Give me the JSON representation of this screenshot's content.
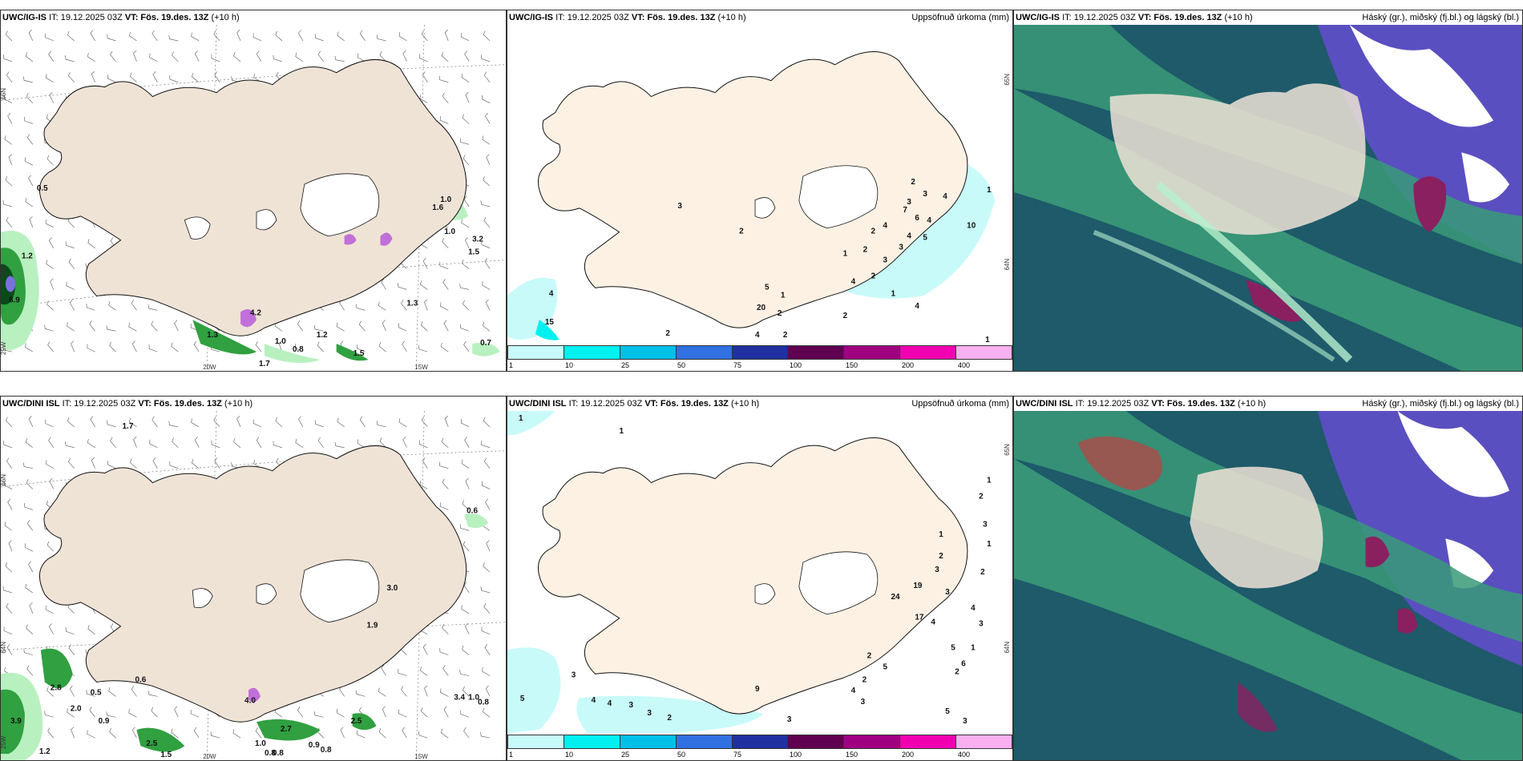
{
  "panels": [
    {
      "id": "top-left",
      "header_model": "UWC/IG-IS",
      "header_it": "IT: 19.12.2025 03Z",
      "header_vt_label": "VT:",
      "header_vt": "Fös. 19.des. 13Z",
      "header_lead": "(+10 h)",
      "right_title": "",
      "type": "wind-precip",
      "values": [
        "0.5",
        "1.2",
        "8.9",
        "1.0",
        "1.6",
        "1.0",
        "3.2",
        "1.5",
        "1.3",
        "1.0",
        "0.8",
        "1.7",
        "1.3",
        "4.2",
        "1.2",
        "1.5",
        "0.7"
      ],
      "lon_labels": [
        "20W",
        "15W"
      ],
      "lat_labels": [
        "66N",
        "64N",
        "25W"
      ]
    },
    {
      "id": "top-mid",
      "header_model": "UWC/IG-IS",
      "header_it": "IT: 19.12.2025 03Z",
      "header_vt_label": "VT:",
      "header_vt": "Fös. 19.des. 13Z",
      "header_lead": "(+10 h)",
      "right_title": "Uppsöfnuð úrkoma (mm)",
      "type": "accum",
      "values": [
        "4",
        "15",
        "3",
        "2",
        "5",
        "1",
        "20",
        "2",
        "2",
        "4",
        "2",
        "4",
        "1",
        "4",
        "2",
        "3",
        "3",
        "2",
        "1",
        "2",
        "1",
        "3",
        "4",
        "6",
        "7",
        "3",
        "4",
        "5",
        "10",
        "1",
        "4",
        "2",
        "3",
        "1"
      ],
      "lat_labels": [
        "65N",
        "64N"
      ]
    },
    {
      "id": "top-right",
      "header_model": "UWC/IG-IS",
      "header_it": "IT: 19.12.2025 03Z",
      "header_vt_label": "VT:",
      "header_vt": "Fös. 19.des. 13Z",
      "header_lead": "(+10 h)",
      "right_title": "Háský (gr.), miðský (fj.bl.) og lágský (bl.)",
      "type": "clouds"
    },
    {
      "id": "bot-left",
      "header_model": "UWC/DINI ISL",
      "header_it": "IT: 19.12.2025 03Z",
      "header_vt_label": "VT:",
      "header_vt": "Fös. 19.des. 13Z",
      "header_lead": "(+10 h)",
      "right_title": "",
      "type": "wind-precip",
      "values": [
        "1.7",
        "0.6",
        "0.6",
        "0.5",
        "2.8",
        "2.0",
        "0.9",
        "3.9",
        "1.2",
        "2.5",
        "1.5",
        "1.0",
        "0.8",
        "0.8",
        "2.7",
        "0.9",
        "0.8",
        "2.5",
        "3.0",
        "1.9",
        "4.0",
        "3.4",
        "1.0",
        "0.8"
      ],
      "lon_labels": [
        "20W",
        "15W"
      ],
      "lat_labels": [
        "66N",
        "64N",
        "25W"
      ]
    },
    {
      "id": "bot-mid",
      "header_model": "UWC/DINI ISL",
      "header_it": "IT: 19.12.2025 03Z",
      "header_vt_label": "VT:",
      "header_vt": "Fös. 19.des. 13Z",
      "header_lead": "(+10 h)",
      "right_title": "Uppsöfnuð úrkoma (mm)",
      "type": "accum",
      "values": [
        "1",
        "1",
        "3",
        "5",
        "4",
        "3",
        "2",
        "3",
        "3",
        "9",
        "1",
        "3",
        "4",
        "2",
        "5",
        "2",
        "24",
        "17",
        "19",
        "3",
        "1",
        "2",
        "3",
        "4",
        "5",
        "6",
        "1",
        "1",
        "2",
        "3",
        "1",
        "2",
        "4",
        "3",
        "2",
        "5",
        "3"
      ],
      "lat_labels": [
        "65N",
        "64N"
      ]
    },
    {
      "id": "bot-right",
      "header_model": "UWC/DINI ISL",
      "header_it": "IT: 19.12.2025 03Z",
      "header_vt_label": "VT:",
      "header_vt": "Fös. 19.des. 13Z",
      "header_lead": "(+10 h)",
      "right_title": "Háský (gr.), miðský (fj.bl.) og lágský (bl.)",
      "type": "clouds"
    }
  ],
  "colorbar": {
    "labels": [
      "1",
      "10",
      "25",
      "50",
      "75",
      "100",
      "150",
      "200",
      "400"
    ],
    "colors": [
      "#c8fafa",
      "#00f0f0",
      "#00c0e8",
      "#3070e0",
      "#2030a0",
      "#600050",
      "#a00080",
      "#f000b0",
      "#f8b0f0"
    ]
  },
  "colors": {
    "land": "#efe3d6",
    "accum_land": "#fdf1e4",
    "precip_light": "#b8f0c0",
    "precip_mid": "#30a040",
    "precip_dark": "#0a4a1a",
    "high_cloud": "#3a9a78",
    "mid_cloud": "#1e5a6a",
    "low_cloud": "#5a4fc0",
    "purple": "#8a2060"
  }
}
